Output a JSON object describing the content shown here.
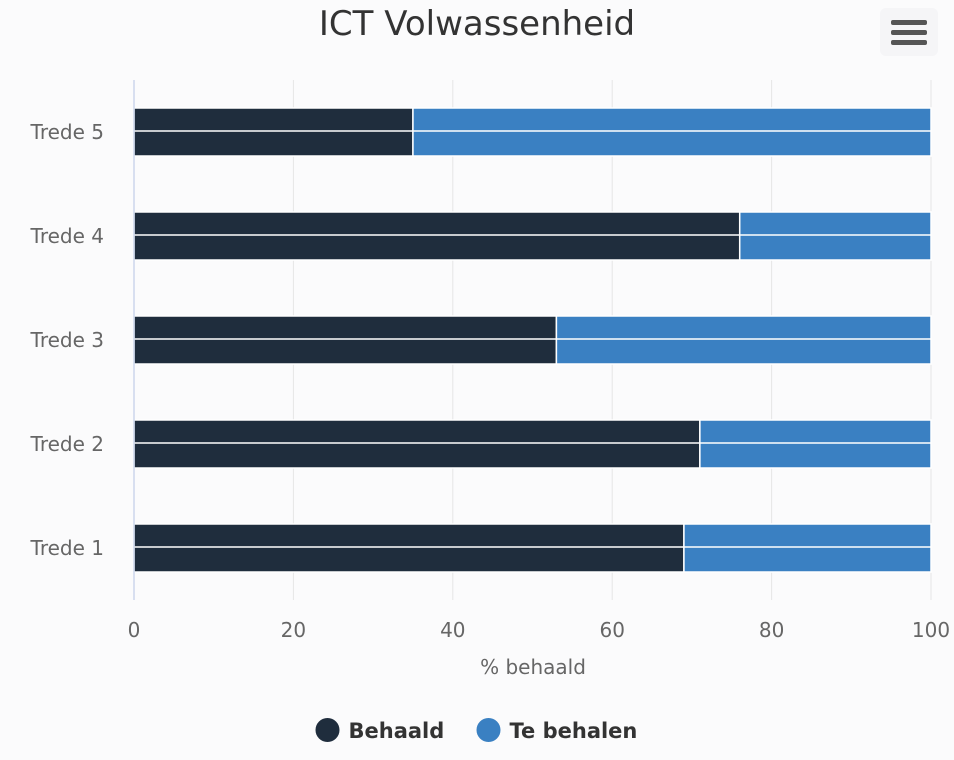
{
  "chart_data": {
    "type": "bar",
    "orientation": "horizontal",
    "stacked": true,
    "title": "ICT Volwassenheid",
    "xlabel": "% behaald",
    "ylabel": "",
    "xlim": [
      0,
      100
    ],
    "x_ticks": [
      "0",
      "20",
      "40",
      "60",
      "80",
      "100"
    ],
    "categories": [
      "Trede 5",
      "Trede 4",
      "Trede 3",
      "Trede 2",
      "Trede 1"
    ],
    "series": [
      {
        "name": "Behaald",
        "color": "#1f2d3d",
        "values": [
          35,
          76,
          53,
          71,
          69
        ]
      },
      {
        "name": "Te behalen",
        "color": "#3a80c2",
        "values": [
          65,
          24,
          47,
          29,
          31
        ]
      }
    ],
    "grid": true,
    "legend": "bottom-center"
  },
  "ui": {
    "menu_icon": "hamburger-icon"
  }
}
